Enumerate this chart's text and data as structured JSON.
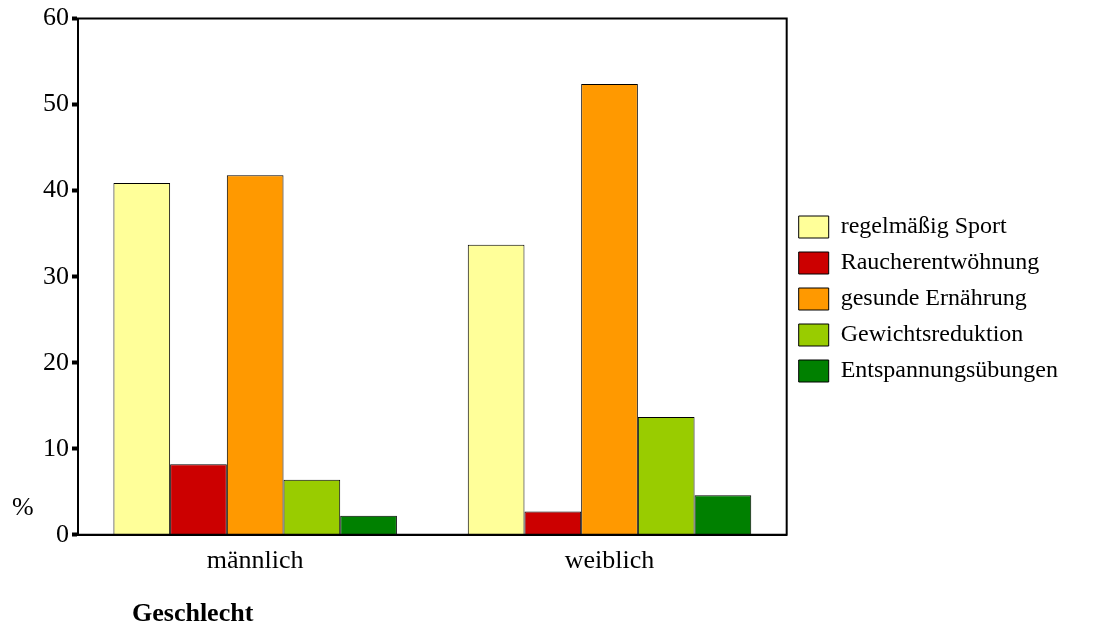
{
  "chart_data": {
    "type": "bar",
    "xlabel": "Geschlecht",
    "ylabel": "%",
    "categories": [
      "männlich",
      "weiblich"
    ],
    "series": [
      {
        "name": "regelmäßig Sport",
        "color": "#ffff99",
        "values": [
          40.9,
          33.7
        ]
      },
      {
        "name": "Raucherentwöhnung",
        "color": "#cc0000",
        "values": [
          8.2,
          2.7
        ]
      },
      {
        "name": "gesunde Ernährung",
        "color": "#ff9900",
        "values": [
          41.8,
          52.4
        ]
      },
      {
        "name": "Gewichtsreduktion",
        "color": "#99cc00",
        "values": [
          6.4,
          13.7
        ]
      },
      {
        "name": "Entspannungsübungen",
        "color": "#008000",
        "values": [
          2.2,
          4.6
        ]
      }
    ],
    "ylim": [
      0,
      60
    ],
    "yticks": [
      0,
      10,
      20,
      30,
      40,
      50,
      60
    ],
    "grid": false,
    "legend": "right"
  }
}
